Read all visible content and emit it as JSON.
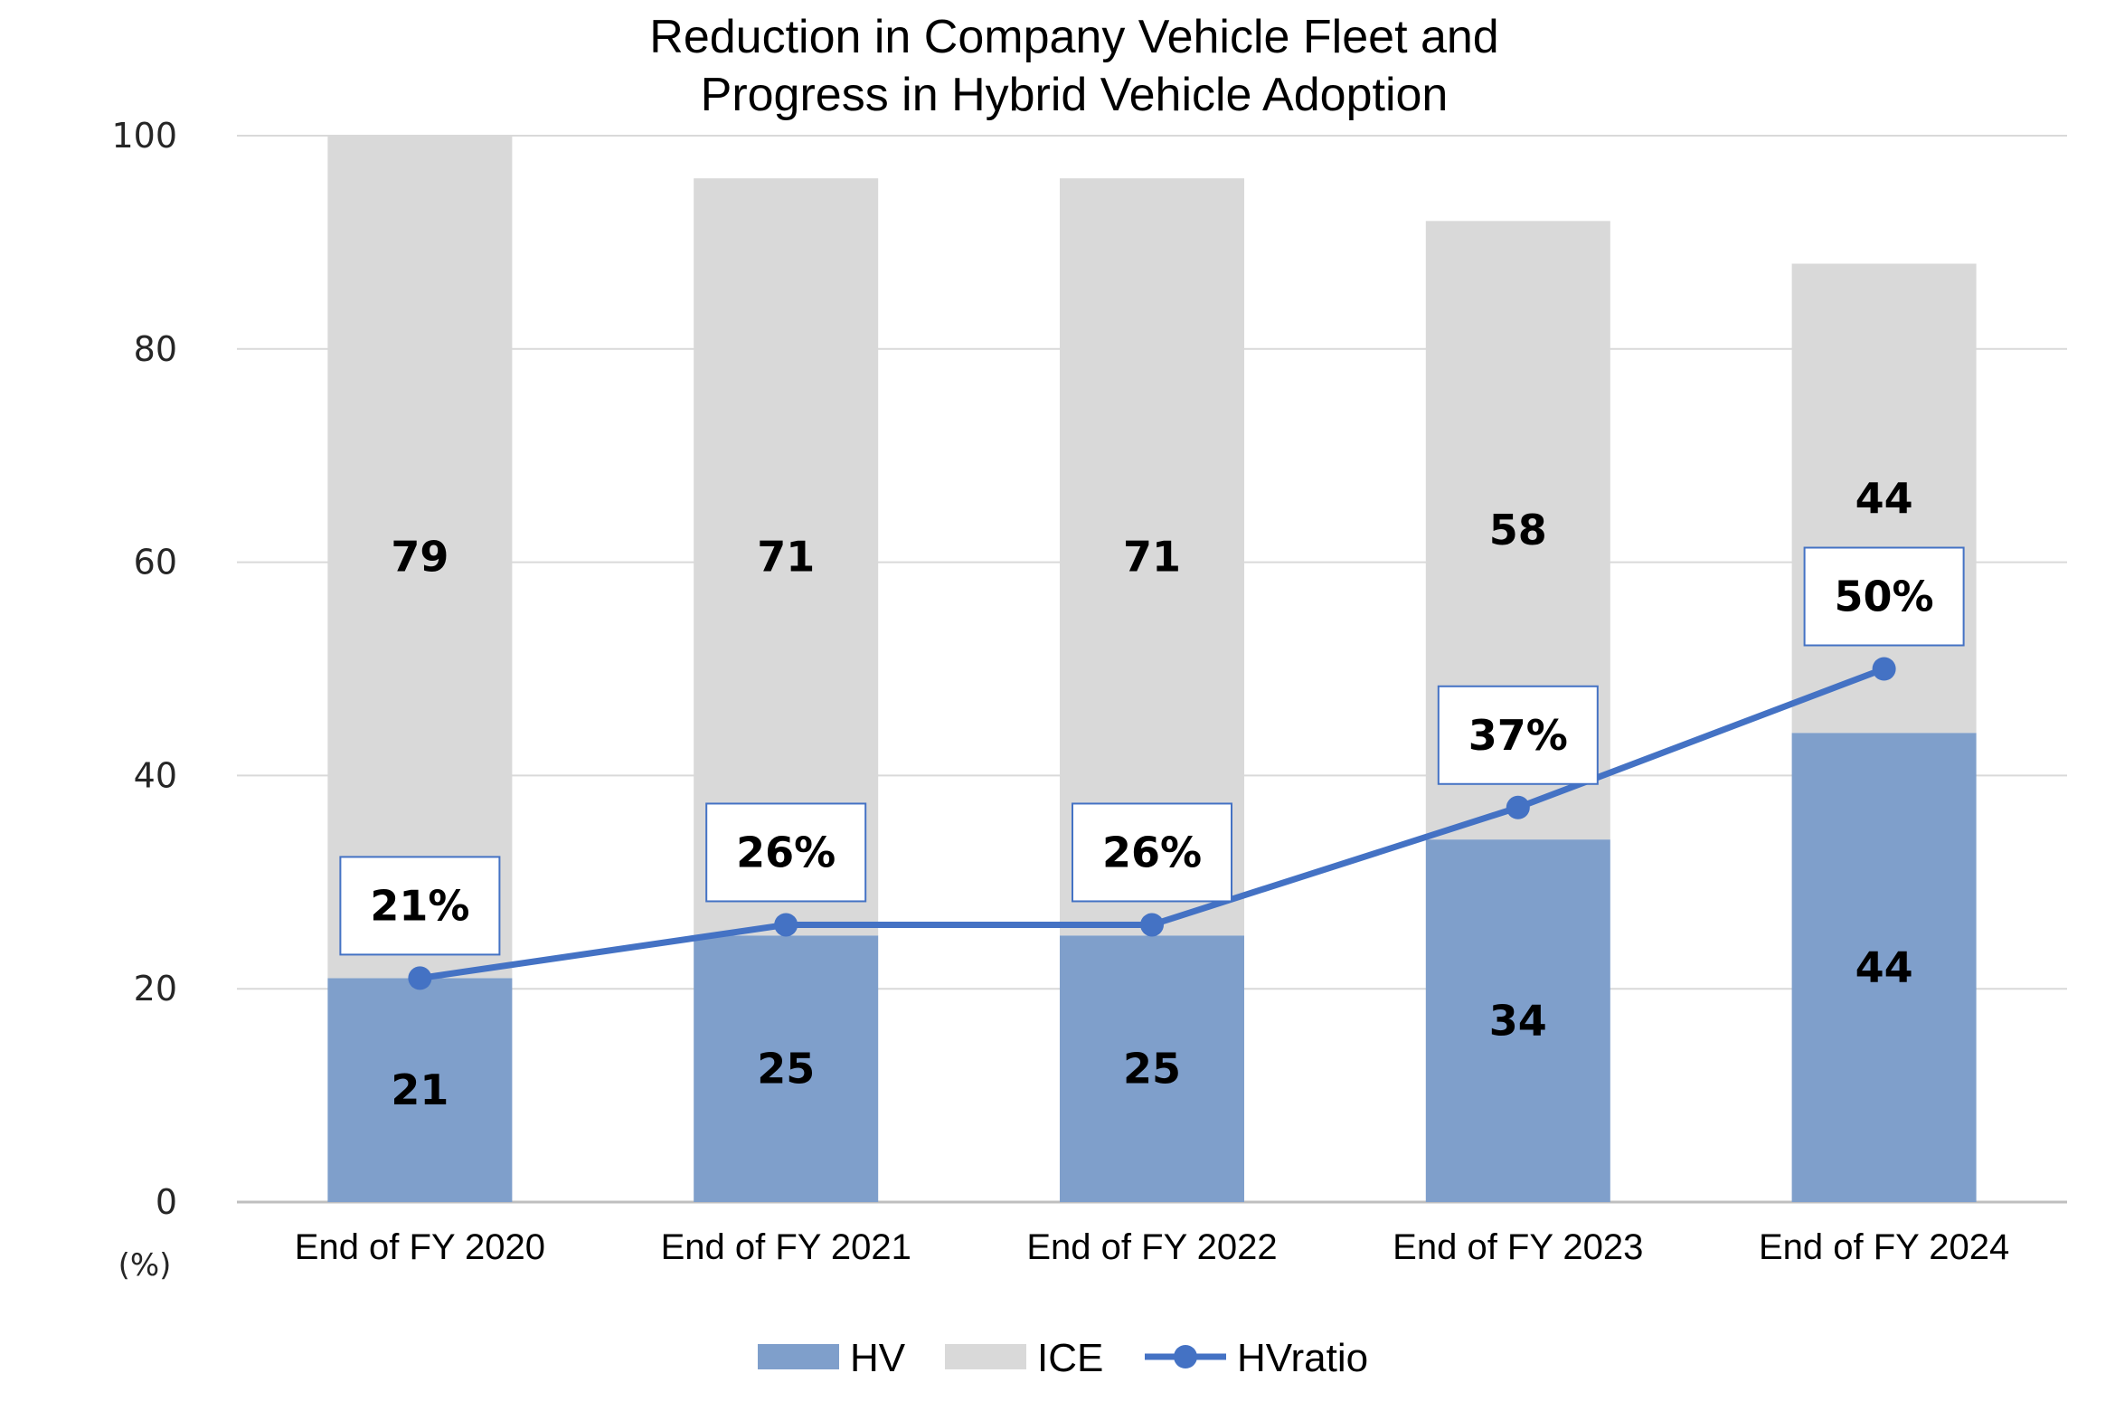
{
  "chart_data": {
    "type": "bar",
    "stacked": true,
    "title_lines": [
      "Reduction in Company Vehicle Fleet and",
      "Progress in Hybrid Vehicle Adoption"
    ],
    "categories": [
      "End of FY 2020",
      "End of FY 2021",
      "End of FY 2022",
      "End of FY 2023",
      "End of FY 2024"
    ],
    "ylim": [
      0,
      100
    ],
    "yticks": [
      0,
      20,
      40,
      60,
      80,
      100
    ],
    "y_unit_label": "(%)",
    "grid": true,
    "series": [
      {
        "name": "HV",
        "type": "bar",
        "color": "#7f9fcb",
        "values": [
          21,
          25,
          25,
          34,
          44
        ]
      },
      {
        "name": "ICE",
        "type": "bar",
        "color": "#d9d9d9",
        "values": [
          79,
          71,
          71,
          58,
          44
        ]
      },
      {
        "name": "HVratio",
        "type": "line",
        "color": "#4472c4",
        "values": [
          21,
          26,
          26,
          37,
          50
        ],
        "labels": [
          "21%",
          "26%",
          "26%",
          "37%",
          "50%"
        ]
      }
    ],
    "legend_position": "bottom"
  }
}
